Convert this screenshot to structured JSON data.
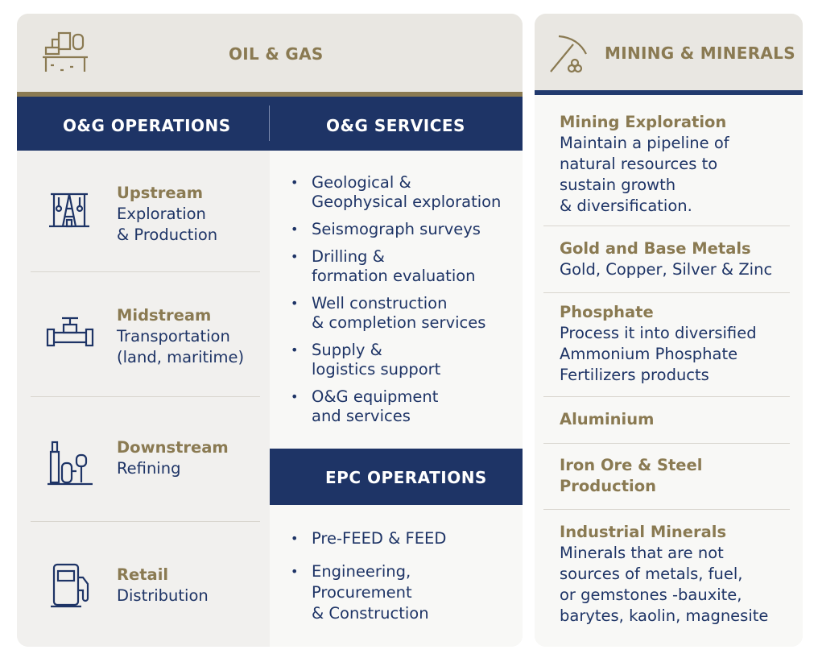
{
  "oil_gas": {
    "title": "OIL & GAS",
    "operations": {
      "heading": "O&G OPERATIONS",
      "items": [
        {
          "title": "Upstream",
          "lines": [
            "Exploration",
            "& Production"
          ],
          "icon": "oil-rig-icon"
        },
        {
          "title": "Midstream",
          "lines": [
            "Transportation",
            "(land, maritime)"
          ],
          "icon": "pipeline-valve-icon"
        },
        {
          "title": "Downstream",
          "lines": [
            "Refining"
          ],
          "icon": "refinery-icon"
        },
        {
          "title": "Retail",
          "lines": [
            "Distribution"
          ],
          "icon": "fuel-pump-icon"
        }
      ]
    },
    "services": {
      "heading": "O&G SERVICES",
      "items": [
        [
          "Geological &",
          "Geophysical exploration"
        ],
        [
          "Seismograph surveys"
        ],
        [
          "Drilling &",
          "formation evaluation"
        ],
        [
          "Well construction",
          "& completion services"
        ],
        [
          "Supply &",
          "logistics support"
        ],
        [
          "O&G equipment",
          "and services"
        ]
      ]
    },
    "epc": {
      "heading": "EPC OPERATIONS",
      "items": [
        [
          "Pre-FEED & FEED"
        ],
        [
          "Engineering,",
          "Procurement",
          "& Construction"
        ]
      ]
    }
  },
  "mining": {
    "title": "MINING & MINERALS",
    "items": [
      {
        "title": [
          "Mining Exploration"
        ],
        "lines": [
          "Maintain a pipeline of",
          "natural resources to",
          "sustain growth",
          "& diversification."
        ]
      },
      {
        "title": [
          "Gold and Base Metals"
        ],
        "lines": [
          "Gold, Copper, Silver & Zinc"
        ]
      },
      {
        "title": [
          "Phosphate"
        ],
        "lines": [
          "Process it into diversified",
          "Ammonium Phosphate",
          "Fertilizers products"
        ]
      },
      {
        "title": [
          "Aluminium"
        ],
        "lines": []
      },
      {
        "title": [
          "Iron Ore & Steel",
          "Production"
        ],
        "lines": []
      },
      {
        "title": [
          "Industrial Minerals"
        ],
        "lines": [
          "Minerals that are not",
          "sources of metals, fuel,",
          "or gemstones -bauxite,",
          "barytes, kaolin, magnesite"
        ]
      }
    ]
  },
  "colors": {
    "navy": "#1e3466",
    "gold": "#8a7a52",
    "panel": "#f1f0ee"
  }
}
